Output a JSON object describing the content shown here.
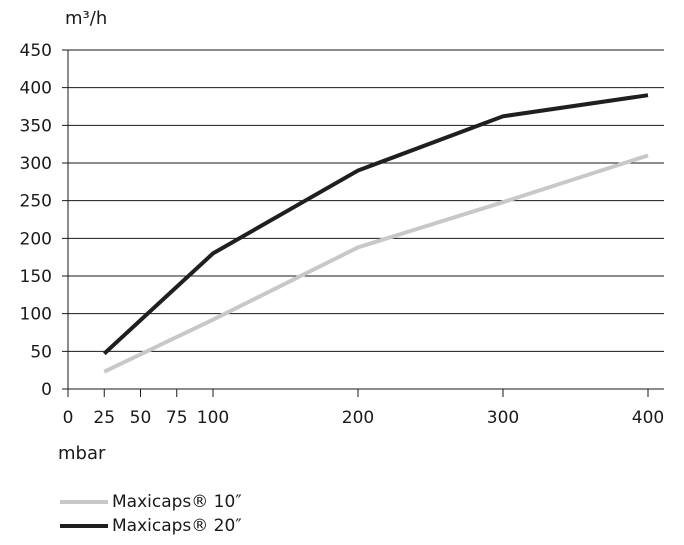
{
  "chart_data": {
    "type": "line",
    "xlabel": "mbar",
    "ylabel": "m³/h",
    "xlim": [
      0,
      400
    ],
    "ylim": [
      0,
      450
    ],
    "x_ticks": [
      0,
      25,
      50,
      75,
      100,
      200,
      300,
      400
    ],
    "y_ticks": [
      0,
      50,
      100,
      150,
      200,
      250,
      300,
      350,
      400,
      450
    ],
    "grid": "horizontal",
    "legend_position": "bottom-left",
    "series": [
      {
        "name": "Maxicaps® 10″",
        "color": "#c8c8c8",
        "x": [
          25,
          100,
          200,
          300,
          400
        ],
        "y": [
          23,
          92,
          188,
          248,
          310
        ]
      },
      {
        "name": "Maxicaps® 20″",
        "color": "#1f1f1f",
        "x": [
          25,
          100,
          200,
          300,
          400
        ],
        "y": [
          47,
          180,
          290,
          362,
          390
        ]
      }
    ]
  }
}
